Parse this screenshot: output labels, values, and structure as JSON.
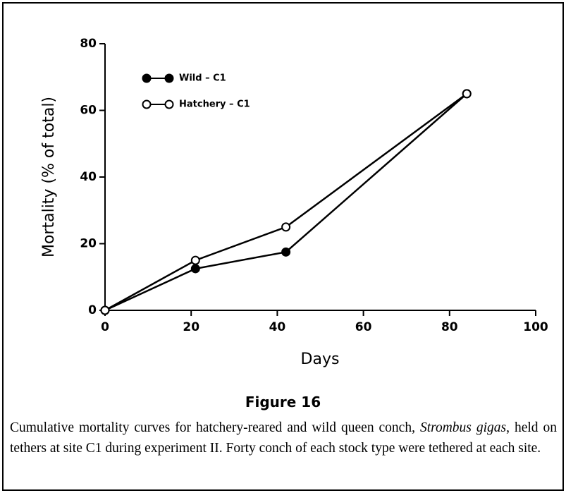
{
  "chart_data": {
    "type": "line",
    "xlabel": "Days",
    "ylabel": "Mortality (% of total)",
    "x": [
      0,
      21,
      42,
      84
    ],
    "series": [
      {
        "name": "Wild – C1",
        "color": "#000000",
        "marker": "filled",
        "values": [
          0,
          12.5,
          17.5,
          65
        ]
      },
      {
        "name": "Hatchery – C1",
        "color": "#000000",
        "marker": "open",
        "values": [
          0,
          15,
          25,
          65
        ]
      }
    ],
    "xlim": [
      0,
      100
    ],
    "xticks": [
      0,
      20,
      40,
      60,
      80,
      100
    ],
    "ylim": [
      0,
      80
    ],
    "yticks": [
      0,
      20,
      40,
      60,
      80
    ],
    "legend": "upper left",
    "figure_label": "Figure 16",
    "caption": [
      "Cumulative mortality curves for hatchery-reared and wild queen conch, ",
      "Strombus gigas",
      ", held on tethers at site C1 during experiment II. Forty conch of each stock type were tethered at each site."
    ]
  }
}
